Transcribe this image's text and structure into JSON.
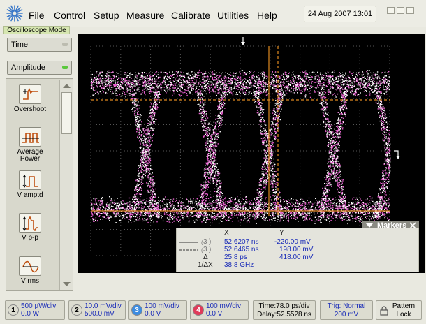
{
  "menubar": {
    "items": [
      "File",
      "Control",
      "Setup",
      "Measure",
      "Calibrate",
      "Utilities",
      "Help"
    ],
    "datetime": "24 Aug 2007   13:01"
  },
  "left_panel": {
    "mode_label": "Oscilloscope Mode",
    "dropdown_time": "Time",
    "dropdown_amplitude": "Amplitude",
    "measurements": [
      {
        "label": "Overshoot",
        "icon": "overshoot-icon"
      },
      {
        "label": "Average Power",
        "icon": "average-power-icon"
      },
      {
        "label": "V amptd",
        "icon": "amplitude-icon"
      },
      {
        "label": "V p-p",
        "icon": "peak-to-peak-icon"
      },
      {
        "label": "V rms",
        "icon": "rms-icon"
      }
    ]
  },
  "markers": {
    "title": "Markers",
    "col_x": "X",
    "col_y": "Y",
    "row1_label": "3",
    "row1_x": "52.6207 ns",
    "row1_y": "-220.00 mV",
    "row2_label": "3",
    "row2_x": "52.6465 ns",
    "row2_y": "198.00 mV",
    "delta_label": "Δ",
    "delta_x": "25.8 ps",
    "delta_y": "418.00 mV",
    "inv_label": "1/ΔX",
    "inv_x": "38.8 GHz"
  },
  "status": {
    "ch1": {
      "num": "1",
      "line1": "500 µW/div",
      "line2": "0.0 W",
      "color": "#dcdcd0"
    },
    "ch2": {
      "num": "2",
      "line1": "10.0 mV/div",
      "line2": "500.0 mV",
      "color": "#dcdcd0"
    },
    "ch3": {
      "num": "3",
      "line1": "100 mV/div",
      "line2": "0.0 V",
      "color": "#3c8ce0"
    },
    "ch4": {
      "num": "4",
      "line1": "100 mV/div",
      "line2": "0.0 V",
      "color": "#e03c5a"
    },
    "time": {
      "line1": "Time:78.0 ps/div",
      "line2": "Delay:52.5528 ns"
    },
    "trig": {
      "line1": "Trig: Normal",
      "line2": "200 mV"
    },
    "pattern": {
      "line1": "Pattern",
      "line2": "Lock"
    }
  },
  "colors": {
    "eye_pink": "#e85fd0",
    "eye_white": "#ffffff",
    "marker_orange": "#e08a20",
    "readout_blue": "#1a2cb8"
  }
}
